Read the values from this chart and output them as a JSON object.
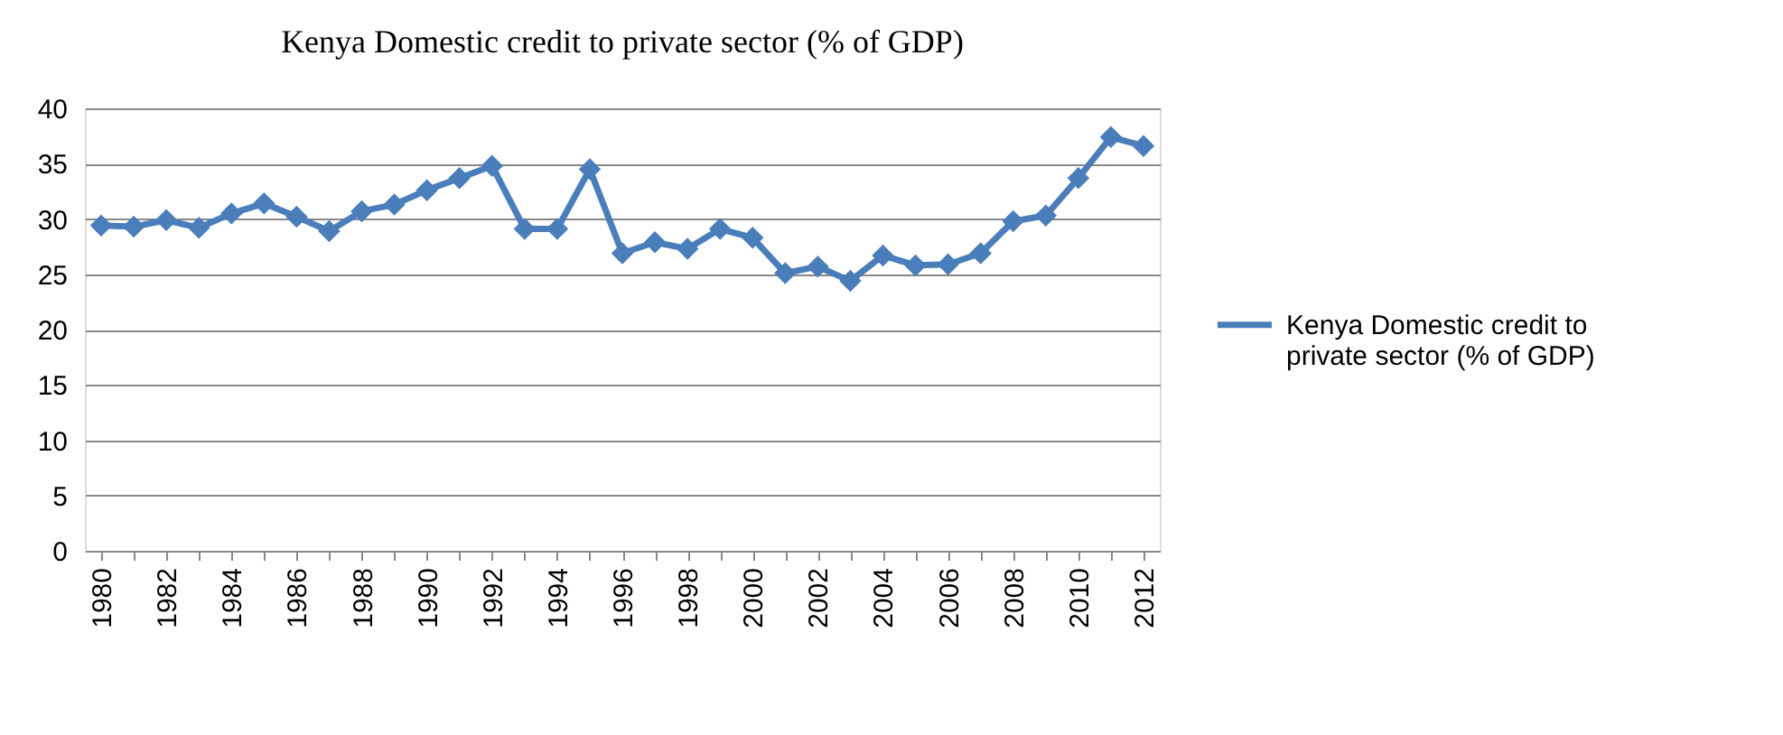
{
  "chart_data": {
    "type": "line",
    "title": "Kenya Domestic credit to private sector (% of GDP)",
    "categories": [
      "1980",
      null,
      "1982",
      null,
      "1984",
      null,
      "1986",
      null,
      "1988",
      null,
      "1990",
      null,
      "1992",
      null,
      "1994",
      null,
      "1996",
      null,
      "1998",
      null,
      "2000",
      null,
      "2002",
      null,
      "2004",
      null,
      "2006",
      null,
      "2008",
      null,
      "2010",
      null,
      "2012"
    ],
    "series": [
      {
        "name": "Kenya Domestic credit to private sector (% of GDP)",
        "color": "#4a7ebb",
        "values": [
          29.4,
          29.3,
          29.9,
          29.2,
          30.5,
          31.4,
          30.2,
          28.9,
          30.7,
          31.3,
          32.6,
          33.7,
          34.8,
          29.1,
          29.1,
          34.5,
          26.9,
          27.9,
          27.3,
          29.1,
          28.3,
          25.1,
          25.7,
          24.4,
          26.7,
          25.8,
          25.9,
          26.9,
          29.8,
          30.3,
          33.7,
          37.4,
          36.6
        ]
      }
    ],
    "ylim": [
      0,
      40
    ],
    "yticks": [
      0,
      5,
      10,
      15,
      20,
      25,
      30,
      35,
      40
    ],
    "grid": "y",
    "legend": "right",
    "marker": "diamond",
    "line_style": "solid"
  }
}
